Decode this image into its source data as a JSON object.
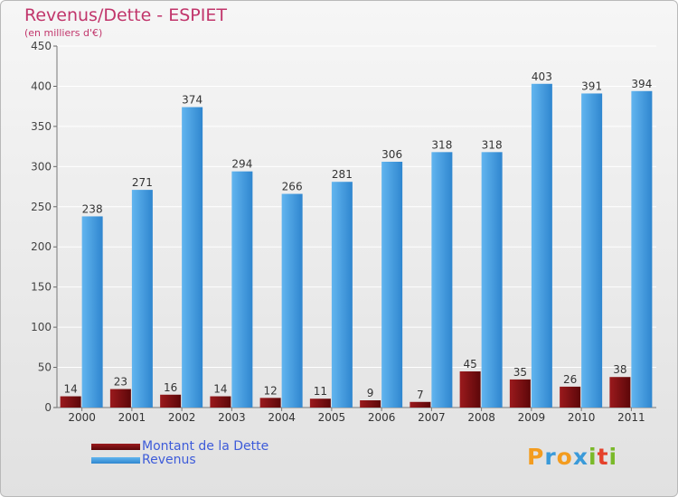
{
  "chart_data": {
    "type": "bar",
    "title": "Revenus/Dette - ESPIET",
    "subtitle": "(en milliers d'€)",
    "categories": [
      "2000",
      "2001",
      "2002",
      "2003",
      "2004",
      "2005",
      "2006",
      "2007",
      "2008",
      "2009",
      "2010",
      "2011"
    ],
    "series": [
      {
        "name": "Montant de la Dette",
        "values": [
          14,
          23,
          16,
          14,
          12,
          11,
          9,
          7,
          45,
          35,
          26,
          38
        ],
        "color": "#7a0d10"
      },
      {
        "name": "Revenus",
        "values": [
          238,
          271,
          374,
          294,
          266,
          281,
          306,
          318,
          318,
          403,
          391,
          394
        ],
        "color": "#4fa4e3"
      }
    ],
    "ylim": [
      0,
      450
    ],
    "yticks": [
      0,
      50,
      100,
      150,
      200,
      250,
      300,
      350,
      400,
      450
    ],
    "grid": true,
    "legend_position": "bottom-left"
  },
  "logo": {
    "letters": [
      {
        "ch": "P",
        "color": "#f39c1f"
      },
      {
        "ch": "r",
        "color": "#3a9ad9"
      },
      {
        "ch": "o",
        "color": "#f39c1f"
      },
      {
        "ch": "x",
        "color": "#3a9ad9"
      },
      {
        "ch": "i",
        "color": "#7ab929"
      },
      {
        "ch": "t",
        "color": "#e5412b"
      },
      {
        "ch": "i",
        "color": "#7ab929"
      }
    ]
  }
}
